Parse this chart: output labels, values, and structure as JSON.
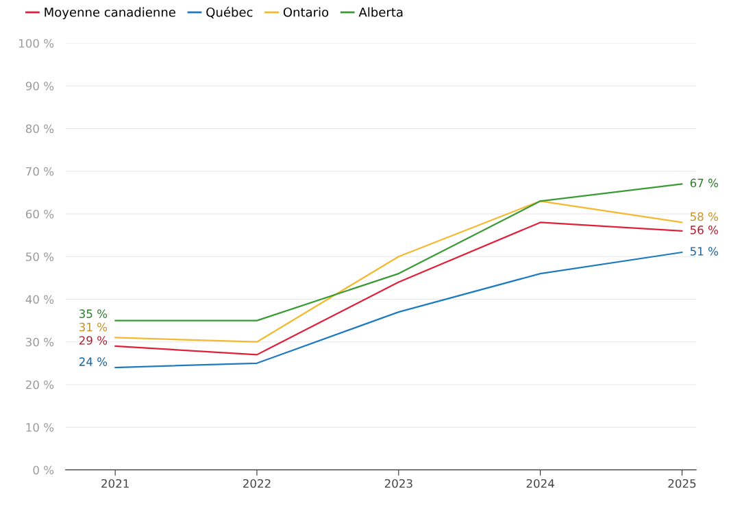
{
  "chart_data": {
    "type": "line",
    "categories": [
      "2021",
      "2022",
      "2023",
      "2024",
      "2025"
    ],
    "series": [
      {
        "name": "Moyenne canadienne",
        "color": "#e0203a",
        "values": [
          29,
          27,
          44,
          58,
          56
        ],
        "value_labels": [
          "29 %",
          null,
          null,
          null,
          "56 %"
        ]
      },
      {
        "name": "Québec",
        "color": "#1f7bc0",
        "values": [
          24,
          25,
          37,
          46,
          51
        ],
        "value_labels": [
          "24 %",
          null,
          null,
          null,
          "51 %"
        ]
      },
      {
        "name": "Ontario",
        "color": "#f5b82e",
        "values": [
          31,
          30,
          50,
          63,
          58
        ],
        "value_labels": [
          "31 %",
          null,
          null,
          null,
          "58 %"
        ]
      },
      {
        "name": "Alberta",
        "color": "#3a9a35",
        "values": [
          35,
          35,
          46,
          63,
          67
        ],
        "value_labels": [
          "35 %",
          null,
          null,
          null,
          "67 %"
        ]
      }
    ],
    "ylim": [
      0,
      100
    ],
    "yticks": [
      {
        "value": 0,
        "label": "0 %"
      },
      {
        "value": 10,
        "label": "10 %"
      },
      {
        "value": 20,
        "label": "20 %"
      },
      {
        "value": 30,
        "label": "30 %"
      },
      {
        "value": 40,
        "label": "40 %"
      },
      {
        "value": 50,
        "label": "50 %"
      },
      {
        "value": 60,
        "label": "60 %"
      },
      {
        "value": 70,
        "label": "70 %"
      },
      {
        "value": 80,
        "label": "80 %"
      },
      {
        "value": 90,
        "label": "90 %"
      },
      {
        "value": 100,
        "label": "100 %"
      }
    ],
    "grid": "y",
    "legend": "top left",
    "marker": "none",
    "line_style": "solid"
  }
}
